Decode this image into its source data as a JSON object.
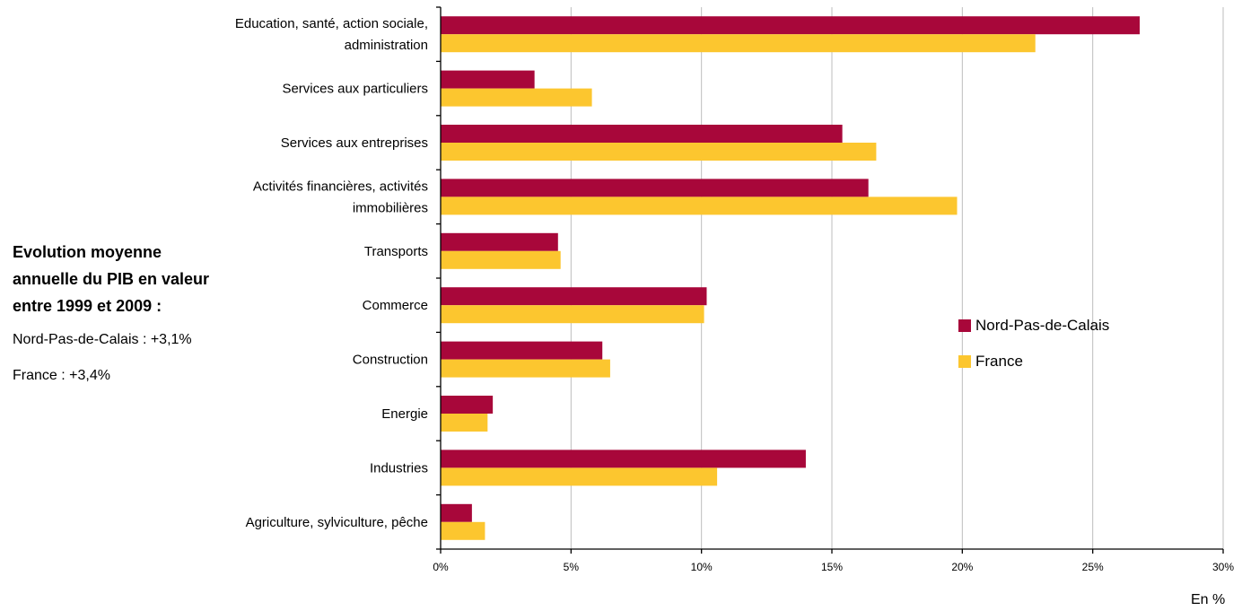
{
  "chart_data": {
    "type": "bar",
    "orientation": "horizontal",
    "categories": [
      "Education, santé, action sociale, administration",
      "Services aux particuliers",
      "Services aux entreprises",
      "Activités financières, activités immobilières",
      "Transports",
      "Commerce",
      "Construction",
      "Energie",
      "Industries",
      "Agriculture, sylviculture, pêche"
    ],
    "category_lines": [
      [
        "Education, santé, action sociale,",
        "administration"
      ],
      [
        "Services aux particuliers"
      ],
      [
        "Services aux entreprises"
      ],
      [
        "Activités financières, activités",
        "immobilières"
      ],
      [
        "Transports"
      ],
      [
        "Commerce"
      ],
      [
        "Construction"
      ],
      [
        "Energie"
      ],
      [
        "Industries"
      ],
      [
        "Agriculture, sylviculture, pêche"
      ]
    ],
    "series": [
      {
        "name": "Nord-Pas-de-Calais",
        "color": "#A8073A",
        "values": [
          26.8,
          3.6,
          15.4,
          16.4,
          4.5,
          10.2,
          6.2,
          2.0,
          14.0,
          1.2
        ]
      },
      {
        "name": "France",
        "color": "#FCC62F",
        "values": [
          22.8,
          5.8,
          16.7,
          19.8,
          4.6,
          10.1,
          6.5,
          1.8,
          10.6,
          1.7
        ]
      }
    ],
    "xlim": [
      0,
      30
    ],
    "xticks": [
      0,
      5,
      10,
      15,
      20,
      25,
      30
    ],
    "xtick_labels": [
      "0%",
      "5%",
      "10%",
      "15%",
      "20%",
      "25%",
      "30%"
    ],
    "xlabel": "En %",
    "grid": "vertical",
    "legend_position": "right"
  },
  "side_note": {
    "title_lines": [
      "Evolution moyenne",
      "annuelle du PIB en valeur",
      "entre 1999 et 2009 :"
    ],
    "nord": "Nord-Pas-de-Calais : +3,1%",
    "france": "France : +3,4%"
  }
}
